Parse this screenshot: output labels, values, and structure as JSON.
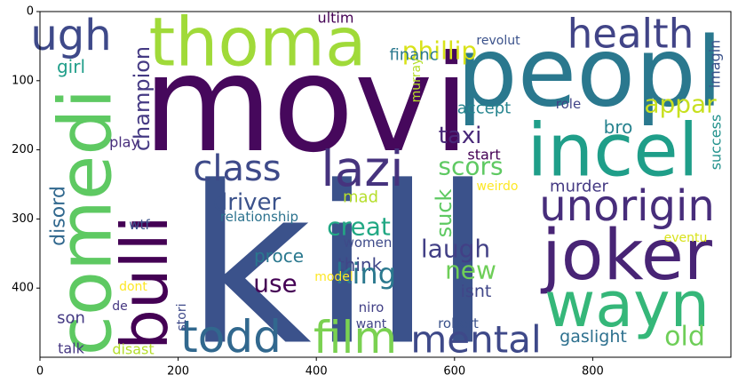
{
  "chart_data": {
    "type": "wordcloud",
    "xlim": [
      0,
      1000
    ],
    "ylim": [
      500,
      0
    ],
    "xticks": [
      0,
      200,
      400,
      600,
      800
    ],
    "yticks": [
      0,
      100,
      200,
      300,
      400
    ],
    "words": [
      {
        "text": "movi",
        "color": "#46085c"
      },
      {
        "text": "kill",
        "color": "#3b528b"
      },
      {
        "text": "peopl",
        "color": "#2a788e"
      },
      {
        "text": "incel",
        "color": "#1f9e89"
      },
      {
        "text": "joker",
        "color": "#482475"
      },
      {
        "text": "wayn",
        "color": "#35b779"
      },
      {
        "text": "comedi",
        "color": "#5ec962"
      },
      {
        "text": "bulli",
        "color": "#440154"
      },
      {
        "text": "thoma",
        "color": "#a0da39"
      },
      {
        "text": "ugh",
        "color": "#3e4989"
      },
      {
        "text": "health",
        "color": "#414487"
      },
      {
        "text": "class",
        "color": "#3e4a89"
      },
      {
        "text": "lazi",
        "color": "#46337e"
      },
      {
        "text": "todd",
        "color": "#31688e"
      },
      {
        "text": "film",
        "color": "#7ad151"
      },
      {
        "text": "mental",
        "color": "#3e4989"
      },
      {
        "text": "unorigin",
        "color": "#472d7b"
      },
      {
        "text": "old",
        "color": "#6ece58"
      },
      {
        "text": "gaslight",
        "color": "#2d708e"
      },
      {
        "text": "phillip",
        "color": "#d8e219"
      },
      {
        "text": "financ",
        "color": "#2a788e"
      },
      {
        "text": "revolut",
        "color": "#3b528b"
      },
      {
        "text": "appar",
        "color": "#c8e020"
      },
      {
        "text": "accept",
        "color": "#25848e"
      },
      {
        "text": "role",
        "color": "#404387"
      },
      {
        "text": "imagin",
        "color": "#3b528b"
      },
      {
        "text": "taxi",
        "color": "#482878"
      },
      {
        "text": "bro",
        "color": "#26828e"
      },
      {
        "text": "success",
        "color": "#21918c"
      },
      {
        "text": "champion",
        "color": "#443983"
      },
      {
        "text": "ultim",
        "color": "#440154"
      },
      {
        "text": "murray",
        "color": "#b5de2b"
      },
      {
        "text": "girl",
        "color": "#1f9e89"
      },
      {
        "text": "play",
        "color": "#472d7b"
      },
      {
        "text": "disord",
        "color": "#31688e"
      },
      {
        "text": "driver",
        "color": "#3b528b"
      },
      {
        "text": "scors",
        "color": "#5ec962"
      },
      {
        "text": "start",
        "color": "#440154"
      },
      {
        "text": "suck",
        "color": "#5ec962"
      },
      {
        "text": "weirdo",
        "color": "#fde725"
      },
      {
        "text": "murder",
        "color": "#443983"
      },
      {
        "text": "mad",
        "color": "#b5de2b"
      },
      {
        "text": "creat",
        "color": "#22a884"
      },
      {
        "text": "relationship",
        "color": "#2c728e"
      },
      {
        "text": "wtf",
        "color": "#3b528b"
      },
      {
        "text": "women",
        "color": "#3e4a89"
      },
      {
        "text": "think",
        "color": "#404688"
      },
      {
        "text": "laugh",
        "color": "#424086"
      },
      {
        "text": "new",
        "color": "#6ece58"
      },
      {
        "text": "king",
        "color": "#2a788e"
      },
      {
        "text": "proce",
        "color": "#2a788e"
      },
      {
        "text": "use",
        "color": "#440154"
      },
      {
        "text": "isnt",
        "color": "#404688"
      },
      {
        "text": "eventu",
        "color": "#d8e219"
      },
      {
        "text": "model",
        "color": "#fde725"
      },
      {
        "text": "niro",
        "color": "#424086"
      },
      {
        "text": "robert",
        "color": "#3b528b"
      },
      {
        "text": "want",
        "color": "#414487"
      },
      {
        "text": "dont",
        "color": "#fde725"
      },
      {
        "text": "de",
        "color": "#453781"
      },
      {
        "text": "stori",
        "color": "#3e4989"
      },
      {
        "text": "son",
        "color": "#443983"
      },
      {
        "text": "talk",
        "color": "#453781"
      },
      {
        "text": "disast",
        "color": "#b5de2b"
      }
    ]
  }
}
